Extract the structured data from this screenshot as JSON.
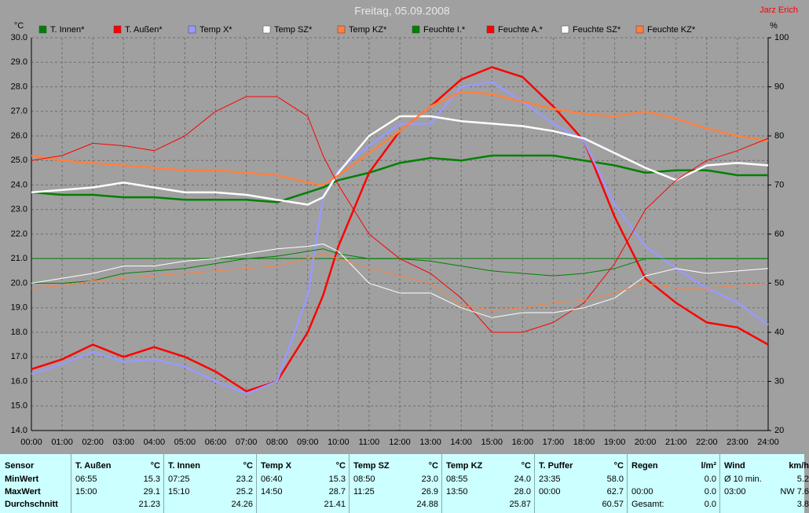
{
  "chart_data": {
    "type": "line",
    "title": "Freitag, 05.09.2008",
    "author": "Jarz Erich",
    "y_label": "°C",
    "y2_label": "%",
    "xlim": [
      0,
      24
    ],
    "xticks": [
      {
        "value": 0,
        "label": "00:00"
      },
      {
        "value": 1,
        "label": "01:00"
      },
      {
        "value": 2,
        "label": "02:00"
      },
      {
        "value": 3,
        "label": "03:00"
      },
      {
        "value": 4,
        "label": "04:00"
      },
      {
        "value": 5,
        "label": "05:00"
      },
      {
        "value": 6,
        "label": "06:00"
      },
      {
        "value": 7,
        "label": "07:00"
      },
      {
        "value": 8,
        "label": "08:00"
      },
      {
        "value": 9,
        "label": "09:00"
      },
      {
        "value": 10,
        "label": "10:00"
      },
      {
        "value": 11,
        "label": "11:00"
      },
      {
        "value": 12,
        "label": "12:00"
      },
      {
        "value": 13,
        "label": "13:00"
      },
      {
        "value": 14,
        "label": "14:00"
      },
      {
        "value": 15,
        "label": "15:00"
      },
      {
        "value": 16,
        "label": "16:00"
      },
      {
        "value": 17,
        "label": "17:00"
      },
      {
        "value": 18,
        "label": "18:00"
      },
      {
        "value": 19,
        "label": "19:00"
      },
      {
        "value": 20,
        "label": "20:00"
      },
      {
        "value": 21,
        "label": "21:00"
      },
      {
        "value": 22,
        "label": "22:00"
      },
      {
        "value": 23,
        "label": "23:00"
      },
      {
        "value": 24,
        "label": "24:00"
      }
    ],
    "ylim": [
      14,
      30
    ],
    "yticks": [
      {
        "value": 14,
        "label": "14.0"
      },
      {
        "value": 15,
        "label": "15.0"
      },
      {
        "value": 16,
        "label": "16.0"
      },
      {
        "value": 17,
        "label": "17.0"
      },
      {
        "value": 18,
        "label": "18.0"
      },
      {
        "value": 19,
        "label": "19.0"
      },
      {
        "value": 20,
        "label": "20.0"
      },
      {
        "value": 21,
        "label": "21.0"
      },
      {
        "value": 22,
        "label": "22.0"
      },
      {
        "value": 23,
        "label": "23.0"
      },
      {
        "value": 24,
        "label": "24.0"
      },
      {
        "value": 25,
        "label": "25.0"
      },
      {
        "value": 26,
        "label": "26.0"
      },
      {
        "value": 27,
        "label": "27.0"
      },
      {
        "value": 28,
        "label": "28.0"
      },
      {
        "value": 29,
        "label": "29.0"
      },
      {
        "value": 30,
        "label": "30.0"
      }
    ],
    "y2lim": [
      20,
      100
    ],
    "y2ticks": [
      20,
      30,
      40,
      50,
      60,
      70,
      80,
      90,
      100
    ],
    "grid": true,
    "x": [
      0,
      1,
      2,
      3,
      4,
      5,
      6,
      7,
      8,
      9,
      9.5,
      10,
      11,
      12,
      13,
      14,
      15,
      16,
      17,
      18,
      19,
      20,
      21,
      22,
      23,
      24
    ],
    "series": [
      {
        "name": "T. Innen*",
        "color": "#008000",
        "width": 2.5,
        "values": [
          23.7,
          23.6,
          23.6,
          23.5,
          23.5,
          23.4,
          23.4,
          23.4,
          23.3,
          23.7,
          23.9,
          24.2,
          24.5,
          24.9,
          25.1,
          25.0,
          25.2,
          25.2,
          25.2,
          25.0,
          24.8,
          24.5,
          24.6,
          24.6,
          24.4,
          24.4
        ]
      },
      {
        "name": "T. Außen*",
        "color": "#ff0000",
        "width": 2.5,
        "values": [
          16.5,
          16.9,
          17.5,
          17.0,
          17.4,
          17.0,
          16.4,
          15.6,
          16.0,
          18.0,
          19.5,
          21.5,
          24.5,
          26.2,
          27.2,
          28.3,
          28.8,
          28.4,
          27.2,
          25.8,
          22.7,
          20.2,
          19.2,
          18.4,
          18.2,
          17.5
        ]
      },
      {
        "name": "Temp X*",
        "color": "#9999ff",
        "width": 2.5,
        "values": [
          16.3,
          16.7,
          17.2,
          16.8,
          16.9,
          16.6,
          16.0,
          15.5,
          16.0,
          19.5,
          23.5,
          24.6,
          25.6,
          26.5,
          26.5,
          28.0,
          28.2,
          27.4,
          26.5,
          25.8,
          23.2,
          21.5,
          20.6,
          19.8,
          19.2,
          18.3
        ]
      },
      {
        "name": "Temp SZ*",
        "color": "#ffffff",
        "width": 2.5,
        "values": [
          23.7,
          23.8,
          23.9,
          24.1,
          23.9,
          23.7,
          23.7,
          23.6,
          23.4,
          23.2,
          23.5,
          24.5,
          26.0,
          26.8,
          26.8,
          26.6,
          26.5,
          26.4,
          26.2,
          25.9,
          25.3,
          24.7,
          24.2,
          24.8,
          24.9,
          24.8
        ]
      },
      {
        "name": "Temp KZ*",
        "color": "#ff8040",
        "width": 2.5,
        "values": [
          25.2,
          25.0,
          24.9,
          24.8,
          24.7,
          24.6,
          24.6,
          24.5,
          24.4,
          24.1,
          24.0,
          24.4,
          25.3,
          26.2,
          27.2,
          27.8,
          27.7,
          27.4,
          27.1,
          26.9,
          26.8,
          27.0,
          26.7,
          26.3,
          26.0,
          25.8
        ]
      },
      {
        "name": "Feuchte I.*",
        "color": "#008000",
        "width": 1,
        "axis": "y2",
        "values": [
          50,
          50,
          50.5,
          52,
          52.5,
          53,
          54,
          55,
          55.5,
          56.5,
          57,
          56,
          55,
          55,
          54.5,
          53.5,
          52.5,
          52,
          51.5,
          52,
          53,
          55,
          55,
          55,
          55,
          55
        ]
      },
      {
        "name": "Feuchte A.*",
        "color": "#ff0000",
        "width": 1,
        "axis": "y2",
        "values": [
          75,
          76,
          78.5,
          78,
          77,
          80,
          85,
          88,
          88,
          84,
          76,
          70,
          60,
          55,
          52,
          47,
          40,
          40,
          42,
          46,
          54,
          65,
          71,
          75,
          77,
          79.5
        ]
      },
      {
        "name": "Feuchte SZ*",
        "color": "#ffffff",
        "width": 1,
        "axis": "y2",
        "values": [
          50,
          51,
          52,
          53.5,
          53.5,
          54.5,
          55,
          56,
          57,
          57.5,
          58,
          56.5,
          50,
          48,
          48,
          45,
          43,
          44,
          44,
          45,
          47,
          51.5,
          53,
          52,
          52.5,
          53
        ]
      },
      {
        "name": "Feuchte KZ*",
        "color": "#ff8040",
        "width": 1,
        "axis": "y2",
        "values": [
          49,
          49.5,
          50.5,
          51,
          51.5,
          52,
          52.5,
          53,
          53.5,
          55,
          56,
          55,
          53,
          51.5,
          50,
          45.5,
          44.5,
          45,
          46,
          46.5,
          48,
          50,
          49,
          49,
          49.5,
          50
        ]
      }
    ]
  },
  "table": {
    "row_header": "Sensor",
    "row_labels": [
      "MinWert",
      "MaxWert",
      "Durchschnitt"
    ],
    "groups": [
      {
        "name": "T. Außen",
        "unit": "°C",
        "rows": [
          [
            "06:55",
            "15.3"
          ],
          [
            "15:00",
            "29.1"
          ],
          [
            null,
            "21.23"
          ]
        ]
      },
      {
        "name": "T. Innen",
        "unit": "°C",
        "rows": [
          [
            "07:25",
            "23.2"
          ],
          [
            "15:10",
            "25.2"
          ],
          [
            null,
            "24.26"
          ]
        ]
      },
      {
        "name": "Temp X",
        "unit": "°C",
        "rows": [
          [
            "06:40",
            "15.3"
          ],
          [
            "14:50",
            "28.7"
          ],
          [
            null,
            "21.41"
          ]
        ]
      },
      {
        "name": "Temp SZ",
        "unit": "°C",
        "rows": [
          [
            "08:50",
            "23.0"
          ],
          [
            "11:25",
            "26.9"
          ],
          [
            null,
            "24.88"
          ]
        ]
      },
      {
        "name": "Temp KZ",
        "unit": "°C",
        "rows": [
          [
            "08:55",
            "24.0"
          ],
          [
            "13:50",
            "28.0"
          ],
          [
            null,
            "25.87"
          ]
        ]
      },
      {
        "name": "T. Puffer",
        "unit": "°C",
        "rows": [
          [
            "23:35",
            "58.0"
          ],
          [
            "00:00",
            "62.7"
          ],
          [
            null,
            "60.57"
          ]
        ]
      },
      {
        "name": "Regen",
        "unit": "l/m²",
        "rows": [
          [
            null,
            "0.0"
          ],
          [
            "00:00",
            "0.0"
          ],
          [
            "Gesamt:",
            "0.0"
          ]
        ]
      },
      {
        "name": "Wind",
        "unit": "km/h",
        "rows": [
          [
            "Ø 10 min.",
            "5.2"
          ],
          [
            "03:00",
            "NW 7.6"
          ],
          [
            null,
            "3.8"
          ]
        ]
      }
    ]
  }
}
